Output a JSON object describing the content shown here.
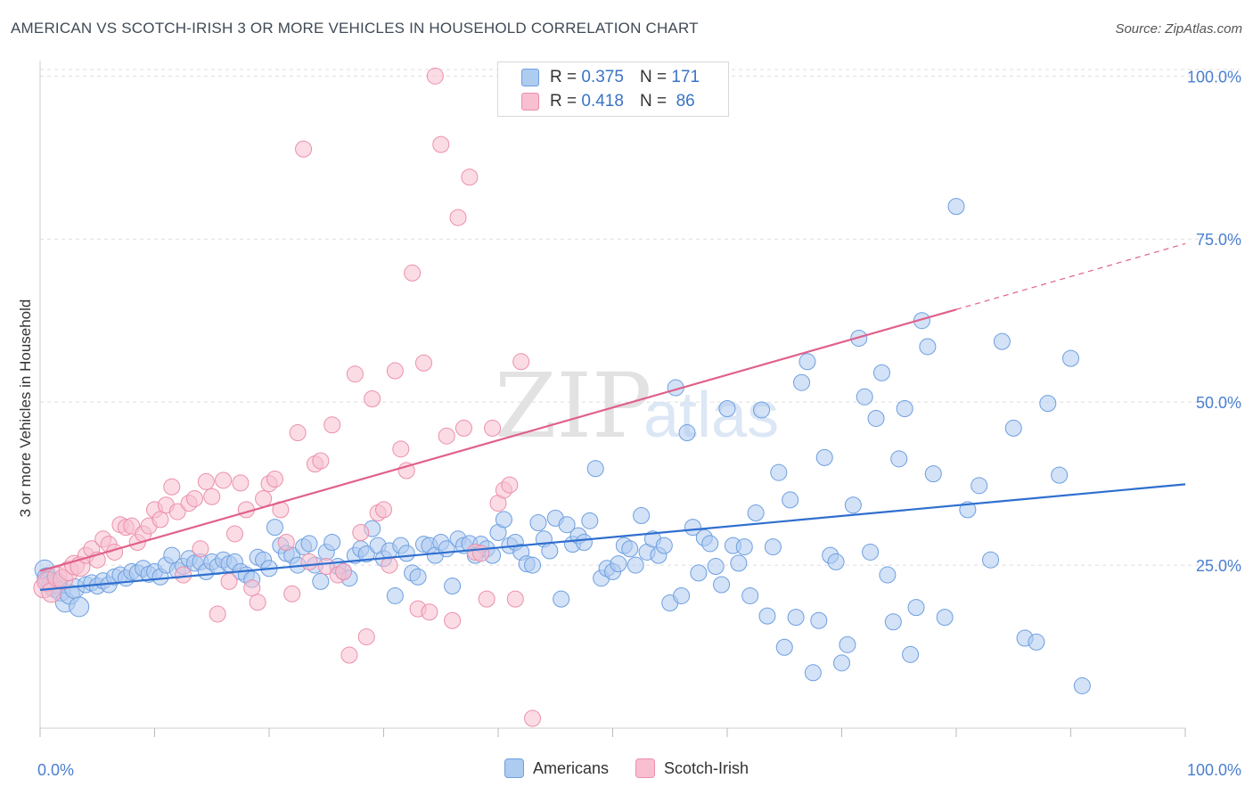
{
  "header": {
    "title": "AMERICAN VS SCOTCH-IRISH 3 OR MORE VEHICLES IN HOUSEHOLD CORRELATION CHART",
    "source": "Source: ZipAtlas.com"
  },
  "watermark": {
    "zip": "ZIP",
    "atlas": "atlas"
  },
  "legend_top": {
    "r_label": "R =",
    "n_label": "N =",
    "rows": [
      {
        "r": "0.375",
        "n": "171"
      },
      {
        "r": "0.418",
        "n": "86"
      }
    ]
  },
  "colors": {
    "americans_fill": "#aecbf0",
    "americans_stroke": "#6d9fe0",
    "americans_line": "#2f6fcf",
    "scotch_fill": "#f8bfd0",
    "scotch_stroke": "#ec8fab",
    "scotch_line": "#e0608a",
    "tick_text": "#4a7fd0"
  },
  "chart_data": {
    "type": "scatter",
    "title": "AMERICAN VS SCOTCH-IRISH 3 OR MORE VEHICLES IN HOUSEHOLD CORRELATION CHART",
    "xlabel": "",
    "ylabel": "3 or more Vehicles in Household",
    "xlim": [
      0,
      100
    ],
    "ylim": [
      0,
      101
    ],
    "x_tick_labels": [
      "0.0%",
      "100.0%"
    ],
    "y_ticks": [
      {
        "value": 25,
        "label": "25.0%"
      },
      {
        "value": 50,
        "label": "50.0%"
      },
      {
        "value": 75,
        "label": "75.0%"
      },
      {
        "value": 100,
        "label": "100.0%"
      }
    ],
    "grid": "horizontal dashed",
    "legend_position": "bottom",
    "series": [
      {
        "name": "Americans",
        "r": 0.375,
        "n": 171,
        "trend": {
          "x0": 0,
          "y0": 21.2,
          "x1": 100,
          "y1": 37.4
        },
        "points": [
          [
            0.4,
            24.3
          ],
          [
            0.6,
            23.1
          ],
          [
            0.8,
            22.5
          ],
          [
            1.0,
            22.0
          ],
          [
            1.2,
            21.6
          ],
          [
            1.5,
            22.2
          ],
          [
            1.8,
            21.0
          ],
          [
            2.2,
            19.3
          ],
          [
            2.6,
            20.5
          ],
          [
            3.0,
            21.4
          ],
          [
            3.4,
            18.6
          ],
          [
            4.0,
            22.0
          ],
          [
            4.5,
            22.3
          ],
          [
            5.0,
            21.8
          ],
          [
            5.5,
            22.6
          ],
          [
            6.0,
            22.0
          ],
          [
            6.5,
            23.2
          ],
          [
            7.0,
            23.5
          ],
          [
            7.5,
            23.0
          ],
          [
            8.0,
            24.0
          ],
          [
            8.5,
            23.8
          ],
          [
            9.0,
            24.5
          ],
          [
            9.5,
            23.6
          ],
          [
            10.0,
            24.0
          ],
          [
            10.5,
            23.2
          ],
          [
            11.0,
            25.0
          ],
          [
            11.5,
            26.5
          ],
          [
            12.0,
            24.2
          ],
          [
            12.5,
            24.8
          ],
          [
            13.0,
            26.0
          ],
          [
            13.5,
            25.3
          ],
          [
            14.0,
            25.5
          ],
          [
            14.5,
            24.0
          ],
          [
            15.0,
            25.5
          ],
          [
            15.5,
            24.8
          ],
          [
            16.0,
            25.8
          ],
          [
            16.5,
            25.2
          ],
          [
            17.0,
            25.5
          ],
          [
            17.5,
            24.0
          ],
          [
            18.0,
            23.5
          ],
          [
            18.5,
            22.8
          ],
          [
            19.0,
            26.2
          ],
          [
            19.5,
            25.8
          ],
          [
            20.0,
            24.5
          ],
          [
            20.5,
            30.8
          ],
          [
            21.0,
            28.0
          ],
          [
            21.5,
            26.8
          ],
          [
            22.0,
            26.5
          ],
          [
            22.5,
            25.0
          ],
          [
            23.0,
            27.8
          ],
          [
            23.5,
            28.3
          ],
          [
            24.0,
            25.0
          ],
          [
            24.5,
            22.5
          ],
          [
            25.0,
            27.0
          ],
          [
            25.5,
            28.5
          ],
          [
            26.0,
            24.8
          ],
          [
            26.5,
            24.0
          ],
          [
            27.0,
            23.0
          ],
          [
            27.5,
            26.5
          ],
          [
            28.0,
            27.5
          ],
          [
            28.5,
            26.7
          ],
          [
            29.0,
            30.6
          ],
          [
            29.5,
            28.0
          ],
          [
            30.0,
            26.0
          ],
          [
            30.5,
            27.2
          ],
          [
            31.0,
            20.3
          ],
          [
            31.5,
            28.0
          ],
          [
            32.0,
            26.8
          ],
          [
            32.5,
            23.8
          ],
          [
            33.0,
            23.2
          ],
          [
            33.5,
            28.2
          ],
          [
            34.0,
            28.0
          ],
          [
            34.5,
            26.5
          ],
          [
            35.0,
            28.5
          ],
          [
            35.5,
            27.5
          ],
          [
            36.0,
            21.8
          ],
          [
            36.5,
            29.0
          ],
          [
            37.0,
            28.0
          ],
          [
            37.5,
            28.3
          ],
          [
            38.0,
            26.5
          ],
          [
            38.5,
            28.2
          ],
          [
            39.0,
            27.5
          ],
          [
            39.5,
            26.5
          ],
          [
            40.0,
            30.0
          ],
          [
            40.5,
            32.0
          ],
          [
            41.0,
            28.0
          ],
          [
            41.5,
            28.5
          ],
          [
            42.0,
            27.0
          ],
          [
            42.5,
            25.2
          ],
          [
            43.0,
            25.0
          ],
          [
            43.5,
            31.5
          ],
          [
            44.0,
            29.0
          ],
          [
            44.5,
            27.2
          ],
          [
            45.0,
            32.2
          ],
          [
            45.5,
            19.8
          ],
          [
            46.0,
            31.2
          ],
          [
            46.5,
            28.2
          ],
          [
            47.0,
            29.5
          ],
          [
            47.5,
            28.5
          ],
          [
            48.0,
            31.8
          ],
          [
            48.5,
            39.8
          ],
          [
            49.0,
            23.0
          ],
          [
            49.5,
            24.5
          ],
          [
            50.0,
            24.0
          ],
          [
            50.5,
            25.2
          ],
          [
            51.0,
            28.0
          ],
          [
            51.5,
            27.5
          ],
          [
            52.0,
            25.0
          ],
          [
            52.5,
            32.6
          ],
          [
            53.0,
            27.0
          ],
          [
            53.5,
            29.0
          ],
          [
            54.0,
            26.5
          ],
          [
            54.5,
            28.0
          ],
          [
            55.0,
            19.2
          ],
          [
            55.5,
            52.2
          ],
          [
            56.0,
            20.3
          ],
          [
            56.5,
            45.3
          ],
          [
            57.0,
            30.8
          ],
          [
            57.5,
            23.8
          ],
          [
            58.0,
            29.2
          ],
          [
            58.5,
            28.3
          ],
          [
            59.0,
            24.8
          ],
          [
            59.5,
            22.0
          ],
          [
            60.0,
            49.0
          ],
          [
            60.5,
            28.0
          ],
          [
            61.0,
            25.3
          ],
          [
            61.5,
            27.8
          ],
          [
            62.0,
            20.3
          ],
          [
            62.5,
            33.0
          ],
          [
            63.0,
            48.8
          ],
          [
            63.5,
            17.2
          ],
          [
            64.0,
            27.8
          ],
          [
            64.5,
            39.2
          ],
          [
            65.0,
            12.4
          ],
          [
            65.5,
            35.0
          ],
          [
            66.0,
            17.0
          ],
          [
            66.5,
            53.0
          ],
          [
            67.0,
            56.2
          ],
          [
            67.5,
            8.5
          ],
          [
            68.0,
            16.5
          ],
          [
            68.5,
            41.5
          ],
          [
            69.0,
            26.5
          ],
          [
            69.5,
            25.5
          ],
          [
            70.0,
            10.0
          ],
          [
            70.5,
            12.8
          ],
          [
            71.0,
            34.2
          ],
          [
            71.5,
            59.8
          ],
          [
            72.0,
            50.8
          ],
          [
            72.5,
            27.0
          ],
          [
            73.0,
            47.5
          ],
          [
            73.5,
            54.5
          ],
          [
            74.0,
            23.5
          ],
          [
            74.5,
            16.3
          ],
          [
            75.0,
            41.3
          ],
          [
            75.5,
            49.0
          ],
          [
            76.0,
            11.3
          ],
          [
            76.5,
            18.5
          ],
          [
            77.0,
            62.5
          ],
          [
            77.5,
            58.5
          ],
          [
            78.0,
            39.0
          ],
          [
            79.0,
            17.0
          ],
          [
            80.0,
            80.0
          ],
          [
            81.0,
            33.5
          ],
          [
            82.0,
            37.2
          ],
          [
            83.0,
            25.8
          ],
          [
            84.0,
            59.3
          ],
          [
            85.0,
            46.0
          ],
          [
            86.0,
            13.8
          ],
          [
            87.0,
            13.2
          ],
          [
            88.0,
            49.8
          ],
          [
            89.0,
            38.8
          ],
          [
            90.0,
            56.7
          ],
          [
            91.0,
            6.5
          ]
        ]
      },
      {
        "name": "Scotch-Irish",
        "r": 0.418,
        "n": 86,
        "trend": {
          "x0": 0,
          "y0": 24.1,
          "x1": 80,
          "y1": 64.2,
          "dashed_to_x": 100,
          "dashed_to_y": 74.3
        },
        "points": [
          [
            0.3,
            21.5
          ],
          [
            0.6,
            22.5
          ],
          [
            1.0,
            20.8
          ],
          [
            1.5,
            23.2
          ],
          [
            2.0,
            22.8
          ],
          [
            2.5,
            24.1
          ],
          [
            3.0,
            25.0
          ],
          [
            3.5,
            24.8
          ],
          [
            4.0,
            26.5
          ],
          [
            4.5,
            27.5
          ],
          [
            5.0,
            25.8
          ],
          [
            5.5,
            29.0
          ],
          [
            6.0,
            28.2
          ],
          [
            6.5,
            27.0
          ],
          [
            7.0,
            31.2
          ],
          [
            7.5,
            30.8
          ],
          [
            8.0,
            31.0
          ],
          [
            8.5,
            28.5
          ],
          [
            9.0,
            29.8
          ],
          [
            9.5,
            31.0
          ],
          [
            10.0,
            33.5
          ],
          [
            10.5,
            32.0
          ],
          [
            11.0,
            34.2
          ],
          [
            11.5,
            37.0
          ],
          [
            12.0,
            33.2
          ],
          [
            12.5,
            23.5
          ],
          [
            13.0,
            34.5
          ],
          [
            13.5,
            35.2
          ],
          [
            14.0,
            27.5
          ],
          [
            14.5,
            37.8
          ],
          [
            15.0,
            35.5
          ],
          [
            15.5,
            17.5
          ],
          [
            16.0,
            38.0
          ],
          [
            16.5,
            22.5
          ],
          [
            17.0,
            29.8
          ],
          [
            17.5,
            37.6
          ],
          [
            18.0,
            33.5
          ],
          [
            18.5,
            21.5
          ],
          [
            19.0,
            19.3
          ],
          [
            19.5,
            35.2
          ],
          [
            20.0,
            37.5
          ],
          [
            20.5,
            38.2
          ],
          [
            21.0,
            33.5
          ],
          [
            21.5,
            28.5
          ],
          [
            22.0,
            20.6
          ],
          [
            22.5,
            45.3
          ],
          [
            23.0,
            88.8
          ],
          [
            23.5,
            25.5
          ],
          [
            24.0,
            40.5
          ],
          [
            24.5,
            41.0
          ],
          [
            25.0,
            24.8
          ],
          [
            25.5,
            46.5
          ],
          [
            26.0,
            23.5
          ],
          [
            26.5,
            24.0
          ],
          [
            27.0,
            11.2
          ],
          [
            27.5,
            54.3
          ],
          [
            28.0,
            30.0
          ],
          [
            28.5,
            14.0
          ],
          [
            29.0,
            50.5
          ],
          [
            29.5,
            33.0
          ],
          [
            30.0,
            33.5
          ],
          [
            30.5,
            25.0
          ],
          [
            31.0,
            54.8
          ],
          [
            31.5,
            42.8
          ],
          [
            32.0,
            39.5
          ],
          [
            32.5,
            69.8
          ],
          [
            33.0,
            18.3
          ],
          [
            33.5,
            56.0
          ],
          [
            34.0,
            17.8
          ],
          [
            34.5,
            100.0
          ],
          [
            35.0,
            89.5
          ],
          [
            35.5,
            44.8
          ],
          [
            36.0,
            16.5
          ],
          [
            36.5,
            78.3
          ],
          [
            37.0,
            46.0
          ],
          [
            37.5,
            84.5
          ],
          [
            38.0,
            27.0
          ],
          [
            38.5,
            26.8
          ],
          [
            39.0,
            19.8
          ],
          [
            39.5,
            46.0
          ],
          [
            40.0,
            34.5
          ],
          [
            40.5,
            36.5
          ],
          [
            41.0,
            37.3
          ],
          [
            41.5,
            19.8
          ],
          [
            42.0,
            56.2
          ],
          [
            43.0,
            1.5
          ],
          [
            44.0,
            100.0
          ]
        ]
      }
    ]
  }
}
